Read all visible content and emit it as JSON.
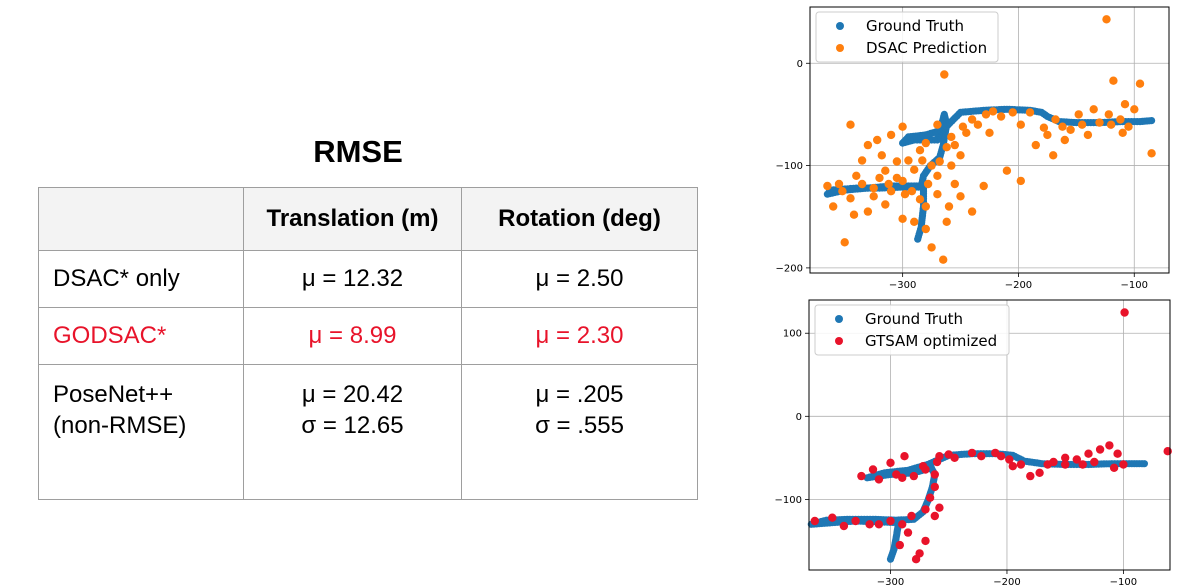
{
  "table": {
    "title": "RMSE",
    "headers": [
      "",
      "Translation (m)",
      "Rotation (deg)"
    ],
    "rows": [
      {
        "label": "DSAC* only",
        "translation": [
          "μ = 12.32"
        ],
        "rotation": [
          "μ = 2.50"
        ],
        "color": "#000000"
      },
      {
        "label": "GODSAC*",
        "translation": [
          "μ = 8.99"
        ],
        "rotation": [
          "μ = 2.30"
        ],
        "color": "#e8132a"
      },
      {
        "label_lines": [
          "PoseNet++",
          "(non-RMSE)"
        ],
        "translation": [
          "μ = 20.42",
          "σ = 12.65"
        ],
        "rotation": [
          "μ = .205",
          "σ = .555"
        ],
        "color": "#000000"
      }
    ]
  },
  "chart_data": [
    {
      "type": "scatter",
      "title": "",
      "xlabel": "",
      "ylabel": "",
      "xlim": [
        -380,
        -70
      ],
      "ylim": [
        -205,
        55
      ],
      "xticks": [
        -300,
        -200,
        -100
      ],
      "yticks": [
        0,
        -100,
        -200
      ],
      "xtick_labels": [
        "−300",
        "−200",
        "−100"
      ],
      "ytick_labels": [
        "0",
        "−100",
        "−200"
      ],
      "grid": true,
      "legend": "top-left",
      "series": [
        {
          "name": "Ground Truth",
          "color": "#1f77b4",
          "path": [
            [
              -287,
              -172
            ],
            [
              -284,
              -160
            ],
            [
              -282,
              -140
            ],
            [
              -282,
              -120
            ],
            [
              -290,
              -120
            ],
            [
              -310,
              -120
            ],
            [
              -330,
              -122
            ],
            [
              -350,
              -124
            ],
            [
              -365,
              -128
            ],
            [
              -362,
              -124
            ],
            [
              -340,
              -122
            ],
            [
              -320,
              -122
            ],
            [
              -300,
              -121
            ],
            [
              -284,
              -121
            ],
            [
              -282,
              -110
            ],
            [
              -276,
              -100
            ],
            [
              -271,
              -95
            ],
            [
              -268,
              -92
            ],
            [
              -265,
              -80
            ],
            [
              -262,
              -60
            ],
            [
              -264,
              -50
            ],
            [
              -270,
              -75
            ],
            [
              -290,
              -75
            ],
            [
              -300,
              -78
            ],
            [
              -295,
              -72
            ],
            [
              -280,
              -70
            ],
            [
              -265,
              -65
            ],
            [
              -250,
              -48
            ],
            [
              -230,
              -46
            ],
            [
              -210,
              -45
            ],
            [
              -190,
              -46
            ],
            [
              -180,
              -48
            ],
            [
              -175,
              -52
            ],
            [
              -165,
              -57
            ],
            [
              -150,
              -58
            ],
            [
              -130,
              -58
            ],
            [
              -110,
              -57
            ],
            [
              -95,
              -57
            ],
            [
              -85,
              -56
            ]
          ]
        },
        {
          "name": "DSAC Prediction",
          "color": "#ff7f0e",
          "points": [
            [
              -124,
              43
            ],
            [
              -264,
              -11
            ],
            [
              -285,
              -85
            ],
            [
              -300,
              -62
            ],
            [
              -245,
              -68
            ],
            [
              -222,
              -47
            ],
            [
              -215,
              -52
            ],
            [
              -205,
              -48
            ],
            [
              -198,
              -60
            ],
            [
              -190,
              -48
            ],
            [
              -178,
              -63
            ],
            [
              -168,
              -55
            ],
            [
              -160,
              -75
            ],
            [
              -155,
              -65
            ],
            [
              -148,
              -50
            ],
            [
              -135,
              -45
            ],
            [
              -130,
              -58
            ],
            [
              -122,
              -50
            ],
            [
              -112,
              -55
            ],
            [
              -108,
              -40
            ],
            [
              -100,
              -45
            ],
            [
              -95,
              -20
            ],
            [
              -85,
              -88
            ],
            [
              -118,
              -17
            ],
            [
              -290,
              -104
            ],
            [
              -305,
              -112
            ],
            [
              -315,
              -138
            ],
            [
              -325,
              -122
            ],
            [
              -345,
              -132
            ],
            [
              -365,
              -120
            ],
            [
              -350,
              -175
            ],
            [
              -330,
              -145
            ],
            [
              -300,
              -152
            ],
            [
              -280,
              -162
            ],
            [
              -275,
              -180
            ],
            [
              -265,
              -192
            ],
            [
              -270,
              -128
            ],
            [
              -255,
              -118
            ],
            [
              -258,
              -100
            ],
            [
              -250,
              -130
            ],
            [
              -240,
              -145
            ],
            [
              -230,
              -120
            ],
            [
              -210,
              -105
            ],
            [
              -198,
              -115
            ],
            [
              -185,
              -80
            ],
            [
              -175,
              -70
            ],
            [
              -170,
              -90
            ],
            [
              -162,
              -62
            ],
            [
              -145,
              -60
            ],
            [
              -140,
              -70
            ],
            [
              -120,
              -60
            ],
            [
              -110,
              -68
            ],
            [
              -105,
              -62
            ],
            [
              -283,
              -95
            ],
            [
              -330,
              -80
            ],
            [
              -322,
              -75
            ],
            [
              -310,
              -70
            ],
            [
              -318,
              -90
            ],
            [
              -305,
              -96
            ],
            [
              -295,
              -95
            ],
            [
              -280,
              -78
            ],
            [
              -268,
              -96
            ],
            [
              -262,
              -82
            ],
            [
              -258,
              -72
            ],
            [
              -248,
              -62
            ],
            [
              -235,
              -60
            ],
            [
              -228,
              -50
            ],
            [
              -340,
              -110
            ],
            [
              -355,
              -118
            ],
            [
              -335,
              -118
            ],
            [
              -320,
              -112
            ],
            [
              -312,
              -118
            ],
            [
              -298,
              -128
            ],
            [
              -285,
              -133
            ],
            [
              -270,
              -110
            ],
            [
              -275,
              -100
            ],
            [
              -345,
              -60
            ],
            [
              -335,
              -95
            ],
            [
              -260,
              -140
            ],
            [
              -262,
              -155
            ],
            [
              -280,
              -140
            ],
            [
              -290,
              -155
            ],
            [
              -270,
              -60
            ],
            [
              -250,
              -90
            ],
            [
              -255,
              -80
            ],
            [
              -240,
              -55
            ],
            [
              -225,
              -68
            ],
            [
              -300,
              -115
            ],
            [
              -315,
              -105
            ],
            [
              -360,
              -140
            ],
            [
              -342,
              -148
            ],
            [
              -352,
              -125
            ],
            [
              -325,
              -130
            ],
            [
              -310,
              -125
            ],
            [
              -292,
              -125
            ],
            [
              -278,
              -118
            ]
          ]
        }
      ]
    },
    {
      "type": "scatter",
      "title": "",
      "xlabel": "",
      "ylabel": "",
      "xlim": [
        -370,
        -60
      ],
      "ylim": [
        -185,
        140
      ],
      "xticks": [
        -300,
        -200,
        -100
      ],
      "yticks": [
        100,
        0,
        -100
      ],
      "xtick_labels": [
        "−300",
        "−200",
        "−100"
      ],
      "ytick_labels": [
        "100",
        "0",
        "−100"
      ],
      "grid": true,
      "legend": "top-left",
      "series": [
        {
          "name": "Ground Truth",
          "color": "#1f77b4",
          "path": [
            [
              -300,
              -172
            ],
            [
              -297,
              -160
            ],
            [
              -295,
              -145
            ],
            [
              -293,
              -128
            ],
            [
              -310,
              -127
            ],
            [
              -330,
              -126
            ],
            [
              -350,
              -128
            ],
            [
              -368,
              -130
            ],
            [
              -355,
              -125
            ],
            [
              -335,
              -124
            ],
            [
              -315,
              -124
            ],
            [
              -295,
              -125
            ],
            [
              -280,
              -124
            ],
            [
              -272,
              -115
            ],
            [
              -268,
              -102
            ],
            [
              -264,
              -85
            ],
            [
              -262,
              -70
            ],
            [
              -265,
              -62
            ],
            [
              -280,
              -68
            ],
            [
              -300,
              -70
            ],
            [
              -320,
              -74
            ],
            [
              -305,
              -68
            ],
            [
              -285,
              -65
            ],
            [
              -268,
              -58
            ],
            [
              -250,
              -47
            ],
            [
              -230,
              -45
            ],
            [
              -210,
              -45
            ],
            [
              -195,
              -47
            ],
            [
              -185,
              -54
            ],
            [
              -170,
              -57
            ],
            [
              -150,
              -58
            ],
            [
              -130,
              -58
            ],
            [
              -110,
              -57
            ],
            [
              -95,
              -57
            ],
            [
              -82,
              -57
            ]
          ]
        },
        {
          "name": "GTSAM optimized",
          "color": "#e8132a",
          "points": [
            [
              -99,
              125
            ],
            [
              -62,
              -42
            ],
            [
              -270,
              -150
            ],
            [
              -275,
              -165
            ],
            [
              -278,
              -172
            ],
            [
              -285,
              -140
            ],
            [
              -292,
              -155
            ],
            [
              -262,
              -120
            ],
            [
              -258,
              -110
            ],
            [
              -290,
              -130
            ],
            [
              -310,
              -130
            ],
            [
              -330,
              -126
            ],
            [
              -350,
              -122
            ],
            [
              -365,
              -126
            ],
            [
              -340,
              -132
            ],
            [
              -318,
              -130
            ],
            [
              -300,
              -126
            ],
            [
              -282,
              -120
            ],
            [
              -270,
              -112
            ],
            [
              -266,
              -98
            ],
            [
              -262,
              -85
            ],
            [
              -262,
              -70
            ],
            [
              -260,
              -55
            ],
            [
              -270,
              -64
            ],
            [
              -290,
              -74
            ],
            [
              -310,
              -76
            ],
            [
              -325,
              -72
            ],
            [
              -315,
              -64
            ],
            [
              -295,
              -70
            ],
            [
              -280,
              -72
            ],
            [
              -250,
              -46
            ],
            [
              -230,
              -44
            ],
            [
              -210,
              -44
            ],
            [
              -198,
              -52
            ],
            [
              -188,
              -58
            ],
            [
              -180,
              -72
            ],
            [
              -172,
              -68
            ],
            [
              -160,
              -55
            ],
            [
              -150,
              -50
            ],
            [
              -140,
              -52
            ],
            [
              -130,
              -45
            ],
            [
              -120,
              -40
            ],
            [
              -112,
              -35
            ],
            [
              -105,
              -45
            ],
            [
              -100,
              -58
            ],
            [
              -108,
              -62
            ],
            [
              -125,
              -55
            ],
            [
              -135,
              -58
            ],
            [
              -150,
              -58
            ],
            [
              -165,
              -58
            ],
            [
              -300,
              -56
            ],
            [
              -288,
              -48
            ],
            [
              -272,
              -60
            ],
            [
              -258,
              -48
            ],
            [
              -245,
              -50
            ],
            [
              -222,
              -48
            ],
            [
              -205,
              -48
            ],
            [
              -195,
              -60
            ]
          ]
        }
      ]
    }
  ]
}
